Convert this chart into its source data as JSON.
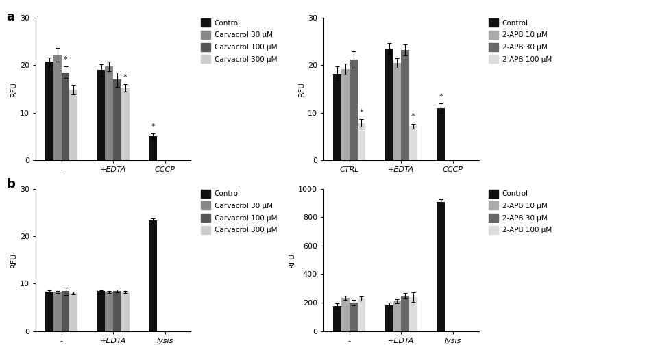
{
  "panel_a_left": {
    "groups": [
      "-",
      "+EDTA",
      "CCCP"
    ],
    "series": [
      "Control",
      "Carvacrol 30 μM",
      "Carvacrol 100 μM",
      "Carvacrol 300 μM"
    ],
    "colors": [
      "#111111",
      "#888888",
      "#555555",
      "#cccccc"
    ],
    "values": [
      [
        20.7,
        22.2,
        18.5,
        14.8
      ],
      [
        19.0,
        19.8,
        17.0,
        15.2
      ],
      [
        5.0,
        null,
        null,
        null
      ]
    ],
    "errors": [
      [
        1.0,
        1.5,
        1.2,
        1.0
      ],
      [
        1.2,
        1.0,
        1.5,
        0.8
      ],
      [
        0.6,
        null,
        null,
        null
      ]
    ],
    "sig": [
      [
        false,
        false,
        true,
        false
      ],
      [
        false,
        false,
        false,
        true
      ],
      [
        true,
        false,
        false,
        false
      ]
    ],
    "ylabel": "RFU",
    "ylim": [
      0,
      30
    ],
    "yticks": [
      0,
      10,
      20,
      30
    ]
  },
  "panel_a_right": {
    "groups": [
      "CTRL",
      "+EDTA",
      "CCCP"
    ],
    "series": [
      "Control",
      "2-APB 10 μM",
      "2-APB 30 μM",
      "2-APB 100 μM"
    ],
    "colors": [
      "#111111",
      "#aaaaaa",
      "#666666",
      "#dddddd"
    ],
    "values": [
      [
        18.2,
        19.2,
        21.2,
        7.8
      ],
      [
        23.5,
        20.5,
        23.2,
        7.2
      ],
      [
        11.0,
        null,
        null,
        null
      ]
    ],
    "errors": [
      [
        1.5,
        1.2,
        1.8,
        0.8
      ],
      [
        1.2,
        1.0,
        1.2,
        0.5
      ],
      [
        1.0,
        null,
        null,
        null
      ]
    ],
    "sig": [
      [
        false,
        false,
        false,
        true
      ],
      [
        false,
        false,
        false,
        true
      ],
      [
        true,
        false,
        false,
        false
      ]
    ],
    "ylabel": "RFU",
    "ylim": [
      0,
      30
    ],
    "yticks": [
      0,
      10,
      20,
      30
    ]
  },
  "panel_b_left": {
    "groups": [
      "-",
      "+EDTA",
      "lysis"
    ],
    "series": [
      "Control",
      "Carvacrol 30 μM",
      "Carvacrol 100 μM",
      "Carvacrol 300 μM"
    ],
    "colors": [
      "#111111",
      "#888888",
      "#555555",
      "#cccccc"
    ],
    "values": [
      [
        8.3,
        8.2,
        8.4,
        8.0
      ],
      [
        8.4,
        8.2,
        8.5,
        8.2
      ],
      [
        23.3,
        null,
        null,
        null
      ]
    ],
    "errors": [
      [
        0.25,
        0.25,
        0.8,
        0.25
      ],
      [
        0.25,
        0.25,
        0.3,
        0.25
      ],
      [
        0.4,
        null,
        null,
        null
      ]
    ],
    "sig": [
      [
        false,
        false,
        false,
        false
      ],
      [
        false,
        false,
        false,
        false
      ],
      [
        false,
        false,
        false,
        false
      ]
    ],
    "ylabel": "RFU",
    "ylim": [
      0,
      30
    ],
    "yticks": [
      0,
      10,
      20,
      30
    ]
  },
  "panel_b_right": {
    "groups": [
      "-",
      "+EDTA",
      "lysis"
    ],
    "series": [
      "Control",
      "2-APB 10 μM",
      "2-APB 30 μM",
      "2-APB 100 μM"
    ],
    "colors": [
      "#111111",
      "#aaaaaa",
      "#666666",
      "#dddddd"
    ],
    "values": [
      [
        175,
        235,
        200,
        230
      ],
      [
        180,
        210,
        248,
        238
      ],
      [
        905,
        null,
        null,
        null
      ]
    ],
    "errors": [
      [
        18,
        15,
        18,
        15
      ],
      [
        18,
        15,
        20,
        35
      ],
      [
        20,
        null,
        null,
        null
      ]
    ],
    "sig": [
      [
        false,
        false,
        false,
        false
      ],
      [
        false,
        false,
        false,
        false
      ],
      [
        false,
        false,
        false,
        false
      ]
    ],
    "ylabel": "RFU",
    "ylim": [
      0,
      1000
    ],
    "yticks": [
      0,
      200,
      400,
      600,
      800,
      1000
    ]
  }
}
